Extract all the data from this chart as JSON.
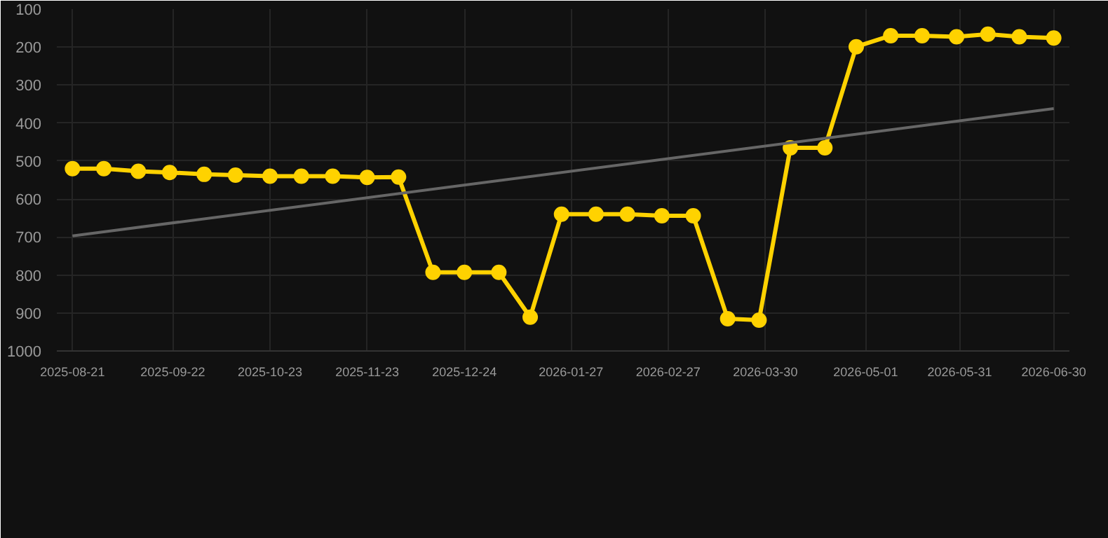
{
  "chart_data": {
    "type": "line",
    "x": [
      "2025-08-21",
      "2025-08-31",
      "2025-09-11",
      "2025-09-21",
      "2025-10-02",
      "2025-10-12",
      "2025-10-23",
      "2025-11-02",
      "2025-11-12",
      "2025-11-23",
      "2025-12-03",
      "2025-12-14",
      "2025-12-24",
      "2026-01-04",
      "2026-01-14",
      "2026-01-24",
      "2026-02-04",
      "2026-02-14",
      "2026-02-25",
      "2026-03-07",
      "2026-03-18",
      "2026-03-28",
      "2026-04-07",
      "2026-04-18",
      "2026-04-28",
      "2026-05-09",
      "2026-05-19",
      "2026-05-30",
      "2026-06-09",
      "2026-06-19",
      "2026-06-30"
    ],
    "series": [
      {
        "color": "#ffd200",
        "marker": "circle",
        "values": [
          520,
          520,
          527,
          530,
          535,
          537,
          540,
          540,
          540,
          543,
          542,
          793,
          793,
          793,
          911,
          640,
          640,
          640,
          644,
          644,
          915,
          919,
          465,
          465,
          199,
          170,
          170,
          173,
          166,
          173,
          176
        ]
      },
      {
        "type": "line",
        "color": "#666666",
        "marker": "none",
        "x": [
          "2025-08-21",
          "2026-06-30"
        ],
        "values": [
          697,
          362
        ]
      }
    ],
    "xlim": [
      "2025-08-16",
      "2026-07-05"
    ],
    "xticks": [
      "2025-08-21",
      "2025-09-22",
      "2025-10-23",
      "2025-11-23",
      "2025-12-24",
      "2026-01-27",
      "2026-02-27",
      "2026-03-30",
      "2026-05-01",
      "2026-05-31",
      "2026-06-30"
    ],
    "ylim": [
      1000,
      100
    ],
    "yticks": [
      100,
      200,
      300,
      400,
      500,
      600,
      700,
      800,
      900,
      1000
    ],
    "grid": true,
    "line_style": "solid"
  }
}
